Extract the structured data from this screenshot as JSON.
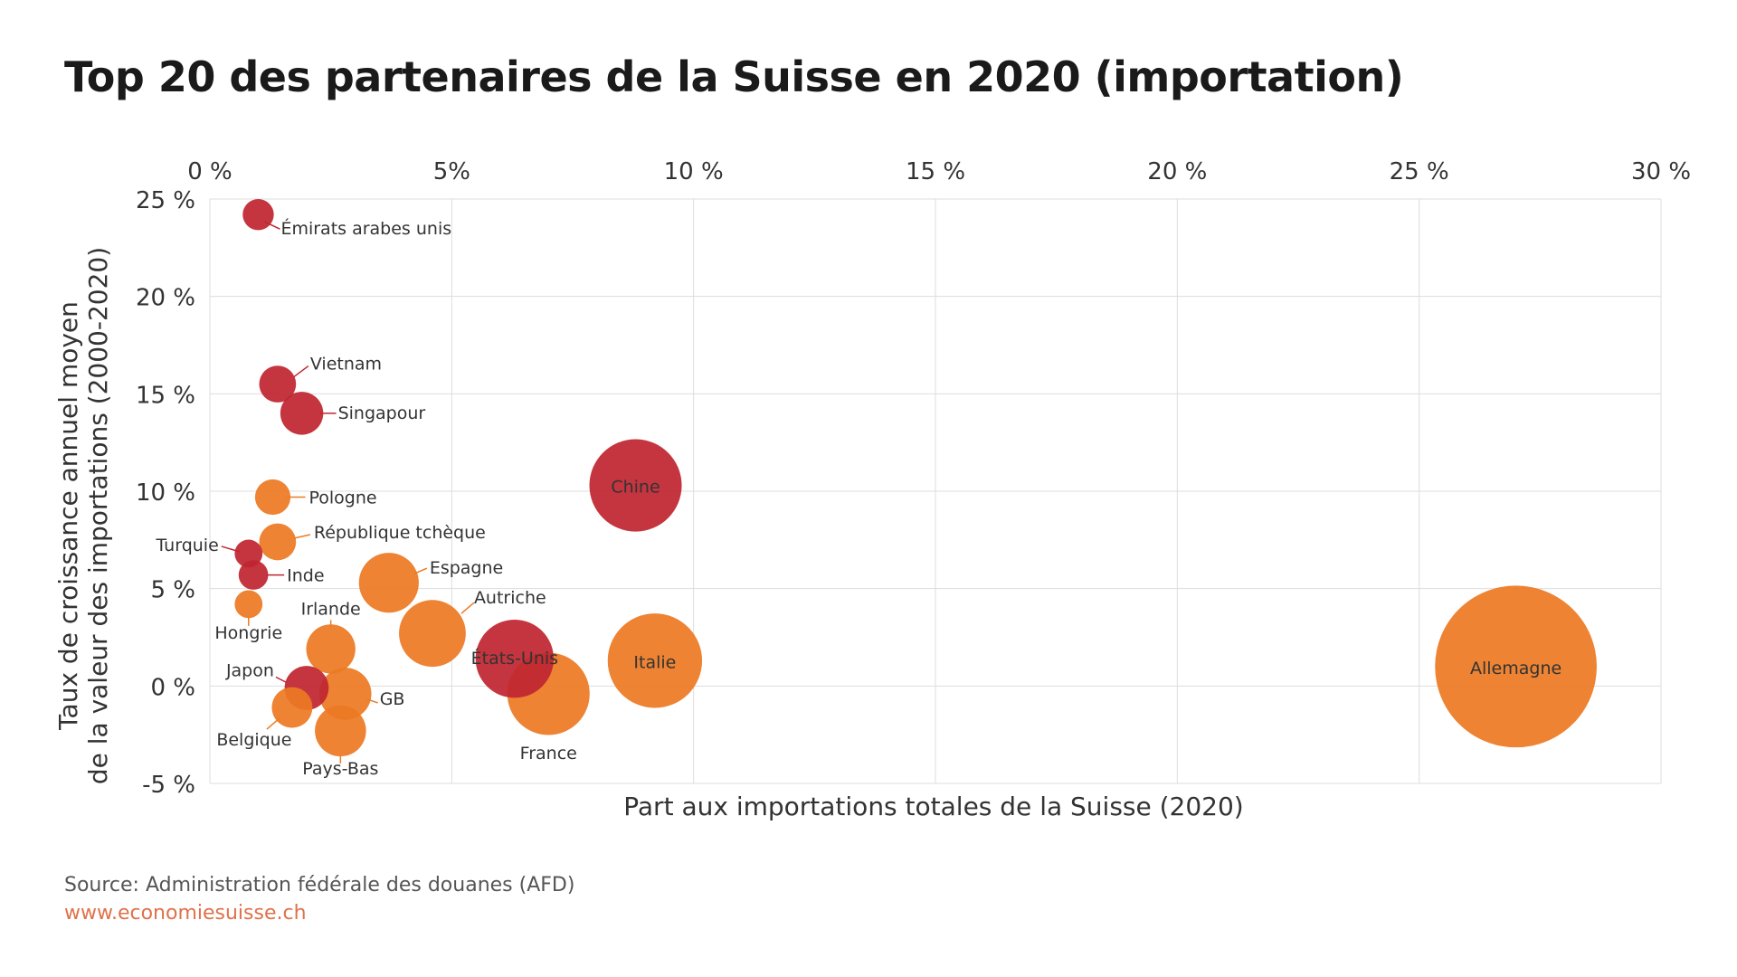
{
  "colors": {
    "red": "#bf2630",
    "orange": "#ec7a23",
    "grid": "#dddddd",
    "text": "#333333",
    "link": "#e0714a"
  },
  "source": "Source: Administration fédérale des douanes (AFD)",
  "website": "www.economiesuisse.ch",
  "chart_data": {
    "type": "scatter",
    "title": "Top 20 des partenaires de la Suisse en 2020 (importation)",
    "xlabel": "Part aux importations totales de la Suisse (2020)",
    "ylabel": [
      "Taux de croissance annuel moyen",
      "de la valeur des importations (2000-2020)"
    ],
    "xlim": [
      0,
      30
    ],
    "ylim": [
      -5,
      25
    ],
    "x_ticks": [
      0,
      5,
      10,
      15,
      20,
      25,
      30
    ],
    "x_tick_labels": [
      "0 %",
      "5%",
      "10 %",
      "15 %",
      "20 %",
      "25 %",
      "30 %"
    ],
    "y_ticks": [
      25,
      20,
      15,
      10,
      5,
      0,
      -5
    ],
    "y_tick_labels": [
      "25 %",
      "20 %",
      "15 %",
      "10 %",
      "5 %",
      "0 %",
      "-5 %"
    ],
    "x_axis_position": "top",
    "grid": true,
    "bubble_size_encodes": "x",
    "points": [
      {
        "name": "Émirats arabes unis",
        "x": 1.0,
        "y": 24.2,
        "color": "red"
      },
      {
        "name": "Vietnam",
        "x": 1.4,
        "y": 15.5,
        "color": "red"
      },
      {
        "name": "Singapour",
        "x": 1.9,
        "y": 14.0,
        "color": "red"
      },
      {
        "name": "Pologne",
        "x": 1.3,
        "y": 9.7,
        "color": "orange"
      },
      {
        "name": "République tchèque",
        "x": 1.4,
        "y": 7.4,
        "color": "orange"
      },
      {
        "name": "Turquie",
        "x": 0.8,
        "y": 6.8,
        "color": "red"
      },
      {
        "name": "Inde",
        "x": 0.9,
        "y": 5.7,
        "color": "red"
      },
      {
        "name": "Hongrie",
        "x": 0.8,
        "y": 4.2,
        "color": "orange"
      },
      {
        "name": "Espagne",
        "x": 3.7,
        "y": 5.3,
        "color": "orange"
      },
      {
        "name": "Irlande",
        "x": 2.5,
        "y": 1.9,
        "color": "orange"
      },
      {
        "name": "Autriche",
        "x": 4.6,
        "y": 2.7,
        "color": "orange"
      },
      {
        "name": "Japon",
        "x": 2.0,
        "y": -0.1,
        "color": "red"
      },
      {
        "name": "GB",
        "x": 2.8,
        "y": -0.4,
        "color": "orange"
      },
      {
        "name": "Belgique",
        "x": 1.7,
        "y": -1.1,
        "color": "orange"
      },
      {
        "name": "Pays-Bas",
        "x": 2.7,
        "y": -2.3,
        "color": "orange"
      },
      {
        "name": "France",
        "x": 7.0,
        "y": -0.4,
        "color": "orange"
      },
      {
        "name": "États-Unis",
        "x": 6.3,
        "y": 1.4,
        "color": "red"
      },
      {
        "name": "Italie",
        "x": 9.2,
        "y": 1.3,
        "color": "orange"
      },
      {
        "name": "Chine",
        "x": 8.8,
        "y": 10.3,
        "color": "red"
      },
      {
        "name": "Allemagne",
        "x": 27.0,
        "y": 1.0,
        "color": "orange"
      }
    ]
  }
}
